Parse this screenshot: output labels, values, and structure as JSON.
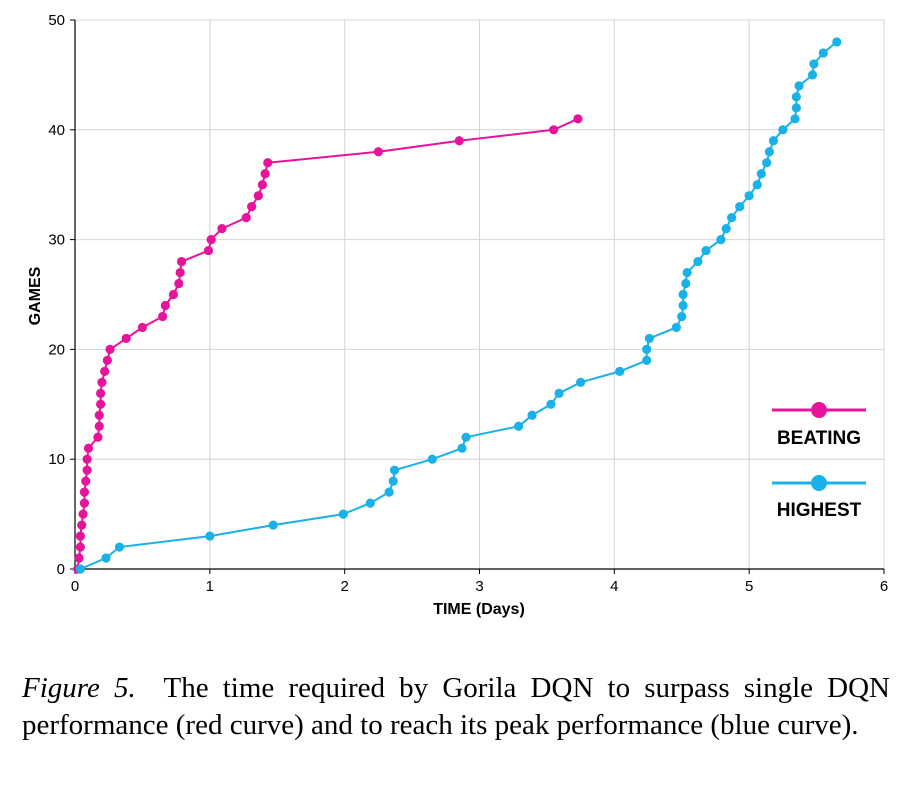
{
  "chart_data": {
    "type": "line",
    "xlabel": "TIME (Days)",
    "ylabel": "GAMES",
    "xlim": [
      0,
      6
    ],
    "ylim": [
      0,
      50
    ],
    "xticks": [
      0,
      1,
      2,
      3,
      4,
      5,
      6
    ],
    "yticks": [
      0,
      10,
      20,
      30,
      40,
      50
    ],
    "grid": true,
    "legend_position": "bottom-right",
    "series": [
      {
        "name": "BEATING",
        "color": "#e6149a",
        "points": [
          [
            0.02,
            0
          ],
          [
            0.03,
            1
          ],
          [
            0.04,
            2
          ],
          [
            0.04,
            3
          ],
          [
            0.05,
            4
          ],
          [
            0.06,
            5
          ],
          [
            0.07,
            6
          ],
          [
            0.07,
            7
          ],
          [
            0.08,
            8
          ],
          [
            0.09,
            9
          ],
          [
            0.09,
            10
          ],
          [
            0.1,
            11
          ],
          [
            0.17,
            12
          ],
          [
            0.18,
            13
          ],
          [
            0.18,
            14
          ],
          [
            0.19,
            15
          ],
          [
            0.19,
            16
          ],
          [
            0.2,
            17
          ],
          [
            0.22,
            18
          ],
          [
            0.24,
            19
          ],
          [
            0.26,
            20
          ],
          [
            0.38,
            21
          ],
          [
            0.5,
            22
          ],
          [
            0.65,
            23
          ],
          [
            0.67,
            24
          ],
          [
            0.73,
            25
          ],
          [
            0.77,
            26
          ],
          [
            0.78,
            27
          ],
          [
            0.79,
            28
          ],
          [
            0.99,
            29
          ],
          [
            1.01,
            30
          ],
          [
            1.09,
            31
          ],
          [
            1.27,
            32
          ],
          [
            1.31,
            33
          ],
          [
            1.36,
            34
          ],
          [
            1.39,
            35
          ],
          [
            1.41,
            36
          ],
          [
            1.43,
            37
          ],
          [
            2.25,
            38
          ],
          [
            2.85,
            39
          ],
          [
            3.55,
            40
          ],
          [
            3.73,
            41
          ]
        ]
      },
      {
        "name": "HIGHEST",
        "color": "#1ab0e8",
        "points": [
          [
            0.04,
            0
          ],
          [
            0.23,
            1
          ],
          [
            0.33,
            2
          ],
          [
            1.0,
            3
          ],
          [
            1.47,
            4
          ],
          [
            1.99,
            5
          ],
          [
            2.19,
            6
          ],
          [
            2.33,
            7
          ],
          [
            2.36,
            8
          ],
          [
            2.37,
            9
          ],
          [
            2.65,
            10
          ],
          [
            2.87,
            11
          ],
          [
            2.9,
            12
          ],
          [
            3.29,
            13
          ],
          [
            3.39,
            14
          ],
          [
            3.53,
            15
          ],
          [
            3.59,
            16
          ],
          [
            3.75,
            17
          ],
          [
            4.04,
            18
          ],
          [
            4.24,
            19
          ],
          [
            4.24,
            20
          ],
          [
            4.26,
            21
          ],
          [
            4.46,
            22
          ],
          [
            4.5,
            23
          ],
          [
            4.51,
            24
          ],
          [
            4.51,
            25
          ],
          [
            4.53,
            26
          ],
          [
            4.54,
            27
          ],
          [
            4.62,
            28
          ],
          [
            4.68,
            29
          ],
          [
            4.79,
            30
          ],
          [
            4.83,
            31
          ],
          [
            4.87,
            32
          ],
          [
            4.93,
            33
          ],
          [
            5.0,
            34
          ],
          [
            5.06,
            35
          ],
          [
            5.09,
            36
          ],
          [
            5.13,
            37
          ],
          [
            5.15,
            38
          ],
          [
            5.18,
            39
          ],
          [
            5.25,
            40
          ],
          [
            5.34,
            41
          ],
          [
            5.35,
            42
          ],
          [
            5.35,
            43
          ],
          [
            5.37,
            44
          ],
          [
            5.47,
            45
          ],
          [
            5.48,
            46
          ],
          [
            5.55,
            47
          ],
          [
            5.65,
            48
          ]
        ]
      }
    ]
  },
  "caption": {
    "figure_label": "Figure 5.",
    "text": "The time required by Gorila DQN to surpass single DQN performance (red curve) and to reach its peak performance (blue curve)."
  }
}
